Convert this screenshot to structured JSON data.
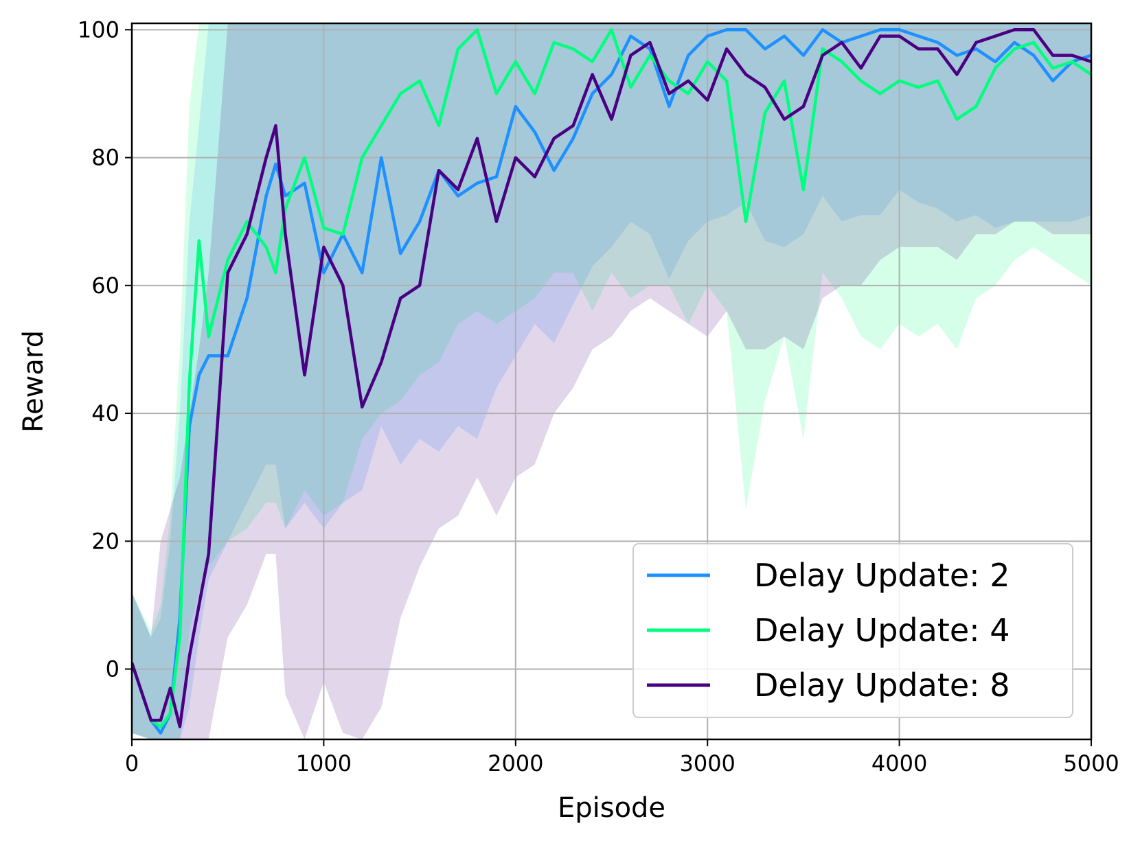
{
  "chart_data": {
    "type": "line",
    "title": "",
    "xlabel": "Episode",
    "ylabel": "Reward",
    "xlim": [
      0,
      5000
    ],
    "ylim": [
      -11,
      101
    ],
    "x_ticks": [
      0,
      1000,
      2000,
      3000,
      4000,
      5000
    ],
    "y_ticks": [
      0,
      20,
      40,
      60,
      80,
      100
    ],
    "x_tick_labels": [
      "0",
      "1000",
      "2000",
      "3000",
      "4000",
      "5000"
    ],
    "y_tick_labels": [
      "0",
      "20",
      "40",
      "60",
      "80",
      "100"
    ],
    "grid": true,
    "legend_position": "lower-right",
    "x": [
      0,
      100,
      150,
      200,
      250,
      300,
      350,
      400,
      500,
      600,
      700,
      750,
      800,
      900,
      1000,
      1100,
      1200,
      1300,
      1400,
      1500,
      1600,
      1700,
      1800,
      1900,
      2000,
      2100,
      2200,
      2300,
      2400,
      2500,
      2600,
      2700,
      2800,
      2900,
      3000,
      3100,
      3200,
      3300,
      3400,
      3500,
      3600,
      3700,
      3800,
      3900,
      4000,
      4100,
      4200,
      4300,
      4400,
      4500,
      4600,
      4700,
      4800,
      4900,
      5000
    ],
    "series": [
      {
        "name": "Delay Update: 2",
        "color": "#1e90ff",
        "values": [
          1,
          -8,
          -10,
          -7,
          8,
          38,
          46,
          49,
          49,
          58,
          74,
          79,
          74,
          76,
          62,
          68,
          62,
          80,
          65,
          70,
          78,
          74,
          76,
          77,
          88,
          84,
          78,
          83,
          90,
          93,
          99,
          97,
          88,
          96,
          99,
          100,
          100,
          97,
          99,
          96,
          100,
          98,
          99,
          100,
          100,
          99,
          98,
          96,
          97,
          95,
          98,
          96,
          92,
          95,
          96
        ],
        "lower": [
          -10,
          -11,
          -11,
          -11,
          -11,
          -6,
          5,
          14,
          20,
          26,
          32,
          32,
          22,
          26,
          22,
          26,
          28,
          38,
          32,
          36,
          34,
          38,
          36,
          44,
          49,
          54,
          51,
          57,
          63,
          66,
          70,
          68,
          61,
          67,
          70,
          71,
          73,
          67,
          66,
          68,
          74,
          70,
          71,
          71,
          75,
          73,
          72,
          70,
          71,
          69,
          70,
          70,
          70,
          70,
          71
        ],
        "upper": [
          12,
          5,
          8,
          20,
          40,
          70,
          85,
          101,
          101,
          101,
          101,
          101,
          101,
          101,
          101,
          101,
          101,
          101,
          101,
          101,
          101,
          101,
          101,
          101,
          101,
          101,
          101,
          101,
          101,
          101,
          101,
          101,
          101,
          101,
          101,
          101,
          101,
          101,
          101,
          101,
          101,
          101,
          101,
          101,
          101,
          101,
          101,
          101,
          101,
          101,
          101,
          101,
          101,
          101,
          101
        ]
      },
      {
        "name": "Delay Update: 4",
        "color": "#00ff7f",
        "values": [
          1,
          -8,
          -9,
          -7,
          5,
          45,
          67,
          52,
          64,
          70,
          66,
          62,
          72,
          80,
          69,
          68,
          80,
          85,
          90,
          92,
          85,
          97,
          100,
          90,
          95,
          90,
          98,
          97,
          95,
          100,
          91,
          96,
          92,
          90,
          95,
          92,
          70,
          87,
          92,
          75,
          97,
          95,
          92,
          90,
          92,
          91,
          92,
          86,
          88,
          94,
          97,
          98,
          94,
          95,
          93
        ],
        "lower": [
          -10,
          -11,
          -11,
          -11,
          -11,
          6,
          12,
          16,
          20,
          22,
          26,
          26,
          22,
          28,
          24,
          26,
          36,
          40,
          42,
          46,
          48,
          54,
          56,
          54,
          56,
          58,
          62,
          62,
          56,
          62,
          58,
          60,
          60,
          54,
          60,
          56,
          25,
          42,
          52,
          36,
          62,
          58,
          52,
          50,
          54,
          52,
          54,
          50,
          58,
          60,
          64,
          66,
          64,
          62,
          60
        ],
        "upper": [
          12,
          6,
          10,
          24,
          50,
          88,
          101,
          101,
          101,
          101,
          101,
          101,
          101,
          101,
          101,
          101,
          101,
          101,
          101,
          101,
          101,
          101,
          101,
          101,
          101,
          101,
          101,
          101,
          101,
          101,
          101,
          101,
          101,
          101,
          101,
          101,
          101,
          101,
          101,
          101,
          101,
          101,
          101,
          101,
          101,
          101,
          101,
          101,
          101,
          101,
          101,
          101,
          101,
          101,
          101
        ]
      },
      {
        "name": "Delay Update: 8",
        "color": "#4b0082",
        "values": [
          1,
          -8,
          -8,
          -3,
          -9,
          2,
          10,
          18,
          62,
          68,
          80,
          85,
          68,
          46,
          66,
          60,
          41,
          48,
          58,
          60,
          78,
          75,
          83,
          70,
          80,
          77,
          83,
          85,
          93,
          86,
          96,
          98,
          90,
          92,
          89,
          97,
          93,
          91,
          86,
          88,
          96,
          98,
          94,
          99,
          99,
          97,
          97,
          93,
          98,
          99,
          100,
          100,
          96,
          96,
          95
        ],
        "lower": [
          -10,
          -11,
          -11,
          -11,
          -11,
          -11,
          -11,
          -11,
          5,
          10,
          18,
          18,
          -4,
          -11,
          -2,
          -10,
          -11,
          -6,
          8,
          16,
          22,
          24,
          30,
          24,
          30,
          32,
          40,
          44,
          50,
          52,
          56,
          58,
          56,
          54,
          52,
          56,
          50,
          50,
          52,
          50,
          58,
          60,
          60,
          64,
          66,
          66,
          66,
          64,
          68,
          68,
          70,
          70,
          68,
          68,
          68
        ],
        "upper": [
          12,
          5,
          20,
          25,
          30,
          40,
          50,
          62,
          101,
          101,
          101,
          101,
          101,
          101,
          101,
          101,
          101,
          101,
          101,
          101,
          101,
          101,
          101,
          101,
          101,
          101,
          101,
          101,
          101,
          101,
          101,
          101,
          101,
          101,
          101,
          101,
          101,
          101,
          101,
          101,
          101,
          101,
          101,
          101,
          101,
          101,
          101,
          101,
          101,
          101,
          101,
          101,
          101,
          101,
          101
        ]
      }
    ]
  }
}
